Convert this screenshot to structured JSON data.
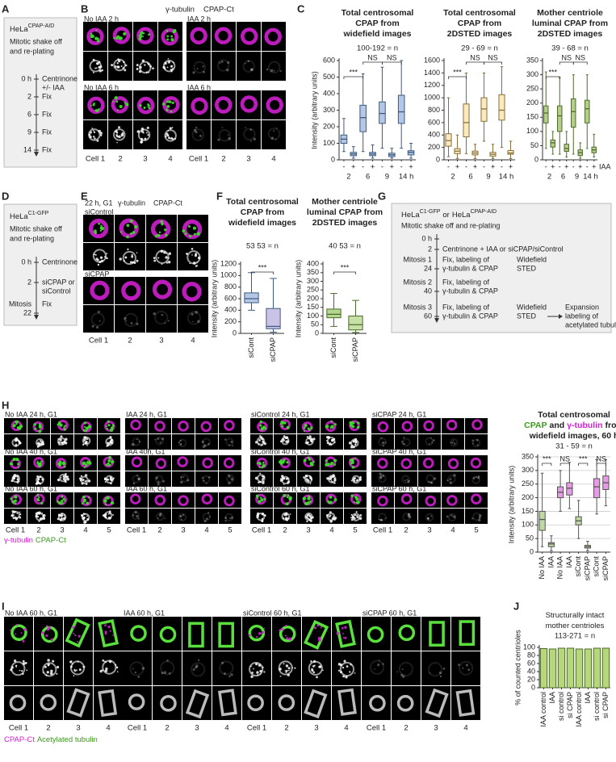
{
  "panel_labels": [
    "A",
    "B",
    "C",
    "D",
    "E",
    "F",
    "G",
    "H",
    "I",
    "J"
  ],
  "panel_a": {
    "cell_line": "HeLa",
    "cell_line_sup": "CPAP-AID",
    "protocol": [
      "Mitotic shake off",
      "and re-plating"
    ],
    "timeline": [
      {
        "time": [
          "0 h"
        ],
        "event": [
          "Centrinone",
          "+/- IAA"
        ]
      },
      {
        "time": [
          "2"
        ],
        "event": [
          "Fix"
        ]
      },
      {
        "time": [
          "6"
        ],
        "event": [
          "Fix"
        ]
      },
      {
        "time": [
          "9"
        ],
        "event": [
          "Fix"
        ]
      },
      {
        "time": [
          "14"
        ],
        "event": [
          "Fix"
        ]
      }
    ]
  },
  "panel_b": {
    "legend": [
      "γ-tubulin",
      "CPAP-Ct"
    ],
    "image_titles": [
      [
        "No IAA 2 h",
        "IAA 2 h"
      ],
      [
        "No IAA 6 h",
        "IAA 6 h"
      ]
    ],
    "cell_labels": [
      "Cell 1",
      "2",
      "3",
      "4"
    ]
  },
  "panel_d": {
    "cell_line": "HeLa",
    "cell_line_sup": "C1-GFP",
    "protocol": [
      "Mitotic shake off",
      "and re-plating"
    ],
    "timeline": [
      {
        "time": [
          "0 h"
        ],
        "event": [
          "Centrinone"
        ]
      },
      {
        "time": [
          "2"
        ],
        "event": [
          "siCPAP or",
          "siControl"
        ]
      },
      {
        "time": [
          "Mitosis",
          "22"
        ],
        "event": [
          "Fix"
        ]
      }
    ]
  },
  "panel_e": {
    "title": "22 h, G1",
    "legend": [
      "γ-tubulin",
      "CPAP-Ct"
    ],
    "conditions": [
      "siControl",
      "siCPAP"
    ],
    "cell_labels": [
      "Cell 1",
      "2",
      "3",
      "4"
    ]
  },
  "panel_g": {
    "cell_line_1": {
      "name": "HeLa",
      "sup": "C1-GFP"
    },
    "conjunction": "or",
    "cell_line_2": {
      "name": "HeLa",
      "sup": "CPAP-AID"
    },
    "protocol": "Mitotic shake off and re-plating",
    "timeline": [
      {
        "time": [
          "0 h"
        ]
      },
      {
        "time": [
          "2"
        ],
        "event": [
          "Centrinone + IAA or siCPAP/siControl"
        ]
      },
      {
        "time": [
          "Mitosis 1",
          "24"
        ],
        "event": [
          "Fix, labeling of",
          "γ-tubulin & CPAP"
        ],
        "imaging": [
          "Widefield",
          "STED"
        ]
      },
      {
        "time": [
          "Mitosis 2",
          "40"
        ],
        "event": [
          "Fix, labeling of",
          "γ-tubulin & CPAP"
        ]
      },
      {
        "time": [
          "Mitosis 3",
          "60"
        ],
        "event": [
          "Fix, labeling of",
          "γ-tubulin & CPAP"
        ],
        "imaging": [
          "Widefield",
          "STED"
        ],
        "followup": [
          "Expansion",
          "labeling of",
          "acetylated tubulin"
        ]
      }
    ]
  },
  "panel_h": {
    "image_titles": [
      [
        "No IAA 24 h, G1",
        "IAA 24 h, G1",
        "siControl 24 h, G1",
        "siCPAP 24 h, G1"
      ],
      [
        "No IAA 40 h, G1",
        "IAA 40h, G1",
        "siControl 40 h, G1",
        "siCPAP 40 h, G1"
      ],
      [
        "No IAA 60 h, G1",
        "IAA 60 h, G1",
        "siControl 60 h, G1",
        "siCPAP 60 h, G1"
      ]
    ],
    "cell_labels": [
      "Cell 1",
      "2",
      "3",
      "4",
      "5"
    ],
    "legend": [
      {
        "text": "γ-tubulin",
        "color": "#d21fd2"
      },
      {
        "text": "CPAP-Ct",
        "color": "#3c9a1e"
      }
    ]
  },
  "panel_i": {
    "image_titles": [
      "No IAA 60 h, G1",
      "IAA 60 h, G1",
      "siControl 60 h, G1",
      "siCPAP 60 h, G1"
    ],
    "cell_labels": [
      "Cell 1",
      "2",
      "3",
      "4"
    ],
    "legend": [
      {
        "text": "CPAP-Ct",
        "color": "#d21fd2"
      },
      {
        "text": "Acetylated tubulin",
        "color": "#3c9a1e"
      }
    ]
  },
  "chart_data": [
    {
      "type": "box",
      "title": [
        [
          {
            "text": "Total centrosomal"
          }
        ],
        [
          {
            "text": "CPAP from"
          }
        ],
        [
          {
            "text": "widefield images"
          }
        ]
      ],
      "n_label": "100-192 = n",
      "y_label": "Intensity (arbitrary units)",
      "categories": [
        "-",
        "+",
        "-",
        "+",
        "-",
        "+",
        "-",
        "+"
      ],
      "groups": [
        "2",
        "6",
        "9",
        "14 h"
      ],
      "color": "#b4c7e7",
      "edge_color": "#3d5a80",
      "ylim": [
        0,
        600
      ],
      "yticks": [
        0,
        100,
        200,
        300,
        400,
        500,
        600
      ],
      "min": [
        50,
        10,
        50,
        10,
        70,
        10,
        70,
        10
      ],
      "q1": [
        100,
        25,
        170,
        25,
        220,
        20,
        220,
        30
      ],
      "median": [
        125,
        35,
        255,
        35,
        280,
        30,
        290,
        45
      ],
      "q3": [
        150,
        45,
        330,
        45,
        350,
        40,
        390,
        55
      ],
      "max": [
        250,
        80,
        520,
        90,
        560,
        70,
        600,
        100
      ],
      "annotations": [
        "***",
        "NS",
        "NS"
      ]
    },
    {
      "type": "box",
      "title": [
        [
          {
            "text": "Total centrosomal"
          }
        ],
        [
          {
            "text": "CPAP from"
          }
        ],
        [
          {
            "text": "2DSTED images"
          }
        ]
      ],
      "n_label": "29 - 69 = n",
      "categories": [
        "-",
        "+",
        "-",
        "+",
        "-",
        "+",
        "-",
        "+"
      ],
      "groups": [
        "2",
        "6",
        "9",
        "14 h"
      ],
      "color": "#fde9c0",
      "edge_color": "#86703a",
      "ylim": [
        0,
        1600
      ],
      "yticks": [
        0,
        200,
        400,
        600,
        800,
        1000,
        1200,
        1400,
        1600
      ],
      "min": [
        50,
        20,
        100,
        20,
        300,
        20,
        200,
        20
      ],
      "q1": [
        220,
        100,
        370,
        80,
        620,
        60,
        640,
        90
      ],
      "median": [
        310,
        140,
        600,
        110,
        820,
        90,
        800,
        110
      ],
      "q3": [
        420,
        180,
        900,
        140,
        1000,
        120,
        1050,
        150
      ],
      "max": [
        1000,
        400,
        1400,
        250,
        1400,
        250,
        1500,
        300
      ],
      "annotations": [
        "***",
        "NS",
        "NS"
      ]
    },
    {
      "type": "box",
      "title": [
        [
          {
            "text": "Mother centriole"
          }
        ],
        [
          {
            "text": "luminal CPAP from"
          }
        ],
        [
          {
            "text": "2DSTED images"
          }
        ]
      ],
      "n_label": "39 - 68 = n",
      "x_label": "IAA",
      "categories": [
        "-",
        "+",
        "-",
        "+",
        "-",
        "+",
        "-",
        "+"
      ],
      "groups": [
        "2",
        "6",
        "9",
        "14 h"
      ],
      "color": "#b5cf8a",
      "edge_color": "#4d6b2a",
      "ylim": [
        0,
        350
      ],
      "yticks": [
        0,
        50,
        100,
        150,
        200,
        250,
        300,
        350
      ],
      "min": [
        40,
        20,
        20,
        10,
        20,
        5,
        40,
        10
      ],
      "q1": [
        130,
        45,
        100,
        30,
        115,
        15,
        130,
        25
      ],
      "median": [
        165,
        60,
        155,
        40,
        170,
        25,
        180,
        35
      ],
      "q3": [
        190,
        70,
        190,
        55,
        215,
        35,
        210,
        45
      ],
      "max": [
        310,
        100,
        290,
        100,
        300,
        60,
        300,
        90
      ],
      "annotations": [
        "***",
        "NS",
        "NS"
      ]
    },
    {
      "type": "box",
      "title": [
        [
          {
            "text": "Total centrosomal"
          }
        ],
        [
          {
            "text": "CPAP from"
          }
        ],
        [
          {
            "text": "widefield images"
          }
        ]
      ],
      "n_label": "53  53 = n",
      "y_label": "Intensity (arbitrary units)",
      "categories": [
        "siCont",
        "siCPAP"
      ],
      "colors": [
        "#b4c7e7",
        "#cbc3e6"
      ],
      "edge_color": "#3d5a80",
      "ylim": [
        0,
        1200
      ],
      "yticks": [
        0,
        200,
        400,
        600,
        800,
        1000,
        1200
      ],
      "min": [
        400,
        20
      ],
      "q1": [
        530,
        80
      ],
      "median": [
        600,
        120
      ],
      "q3": [
        700,
        430
      ],
      "max": [
        1050,
        950
      ],
      "annotations": [
        "***"
      ]
    },
    {
      "type": "box",
      "title": [
        [
          {
            "text": "Mother centriole"
          }
        ],
        [
          {
            "text": "luminal CPAP from"
          }
        ],
        [
          {
            "text": "2DSTED images"
          }
        ]
      ],
      "n_label": "40  53 = n",
      "y_label": "Intensity (arbitrary units)",
      "categories": [
        "siCont",
        "siCPAP"
      ],
      "colors": [
        "#b5d68f",
        "#c6e0a8"
      ],
      "edge_color": "#4d6b2a",
      "ylim": [
        0,
        400
      ],
      "yticks": [
        0,
        50,
        100,
        150,
        200,
        250,
        300,
        350,
        400
      ],
      "min": [
        40,
        5
      ],
      "q1": [
        90,
        20
      ],
      "median": [
        110,
        50
      ],
      "q3": [
        140,
        100
      ],
      "max": [
        230,
        190
      ],
      "annotations": [
        "***"
      ]
    },
    {
      "type": "box",
      "title": [
        [
          {
            "text": "Total centrosomal"
          }
        ],
        [
          {
            "text": "CPAP",
            "color": "#3c9a1e"
          },
          {
            "text": "and"
          },
          {
            "text": "γ-tubulin",
            "color": "#d21fd2"
          },
          {
            "text": "from"
          }
        ],
        [
          {
            "text": "widefield images, 60 h"
          }
        ]
      ],
      "n_label": "31 - 59 = n",
      "y_label": "Intensity (arbitrary units)",
      "categories": [
        "No IAA",
        "IAA",
        "No IAA",
        "IAA",
        "siCont",
        "siCPAP",
        "siCont",
        "siCPAP"
      ],
      "colors": [
        "#bfd9a3",
        "#bfd9a3",
        "#e79be4",
        "#e79be4",
        "#bfd9a3",
        "#bfd9a3",
        "#e79be4",
        "#e79be4"
      ],
      "edge_color": "#555555",
      "ylim": [
        0,
        350
      ],
      "yticks": [
        0,
        50,
        100,
        150,
        200,
        250,
        300,
        350
      ],
      "grid": true,
      "min": [
        20,
        5,
        150,
        160,
        50,
        5,
        140,
        170
      ],
      "q1": [
        80,
        20,
        200,
        210,
        100,
        15,
        200,
        230
      ],
      "median": [
        120,
        30,
        220,
        235,
        115,
        20,
        240,
        255
      ],
      "q3": [
        150,
        35,
        240,
        255,
        130,
        25,
        270,
        280
      ],
      "max": [
        290,
        60,
        300,
        330,
        190,
        40,
        340,
        340
      ],
      "annotations": [
        "***",
        "NS",
        "***",
        "NS"
      ]
    },
    {
      "type": "bar",
      "title": [
        [
          {
            "text": "Structurally intact"
          }
        ],
        [
          {
            "text": "mother centrioles"
          }
        ]
      ],
      "n_label": "113-271 = n",
      "y_label": "% of counted centrioles",
      "categories": [
        "IAA control",
        "IAA",
        "si control",
        "si CPAP",
        "IAA control",
        "IAA",
        "si control",
        "si CPAP"
      ],
      "values": [
        97,
        96,
        98,
        98,
        96,
        96,
        98,
        98
      ],
      "color": "#b6d77a",
      "edge_color": "#4d6b2a",
      "ylim": [
        0,
        100
      ],
      "yticks": [
        0,
        20,
        40,
        60,
        80,
        100
      ]
    }
  ]
}
